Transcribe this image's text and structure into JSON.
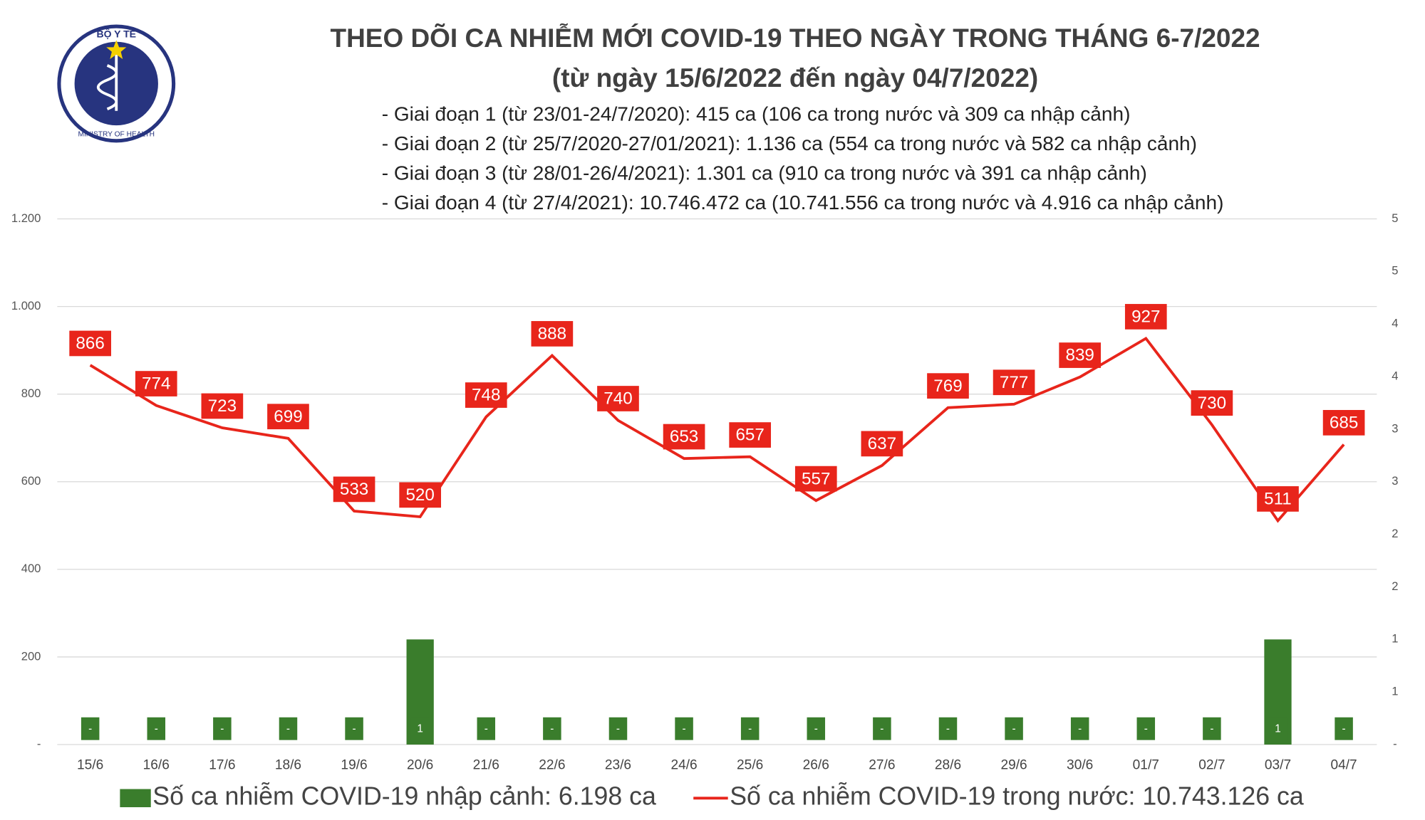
{
  "logo": {
    "top_text": "BỘ Y TẾ",
    "bottom_text": "MINISTRY OF HEALTH"
  },
  "chart_data": {
    "type": "bar-line",
    "title": "THEO DÕI CA NHIỄM MỚI COVID-19 THEO NGÀY TRONG THÁNG 6-7/2022",
    "subtitle": "(từ ngày 15/6/2022 đến ngày 04/7/2022)",
    "notes": [
      "- Giai đoạn 1 (từ 23/01-24/7/2020): 415 ca (106 ca trong nước và 309 ca nhập cảnh)",
      "- Giai đoạn 2 (từ 25/7/2020-27/01/2021): 1.136 ca (554 ca trong nước và 582 ca nhập cảnh)",
      "- Giai đoạn 3 (từ 28/01-26/4/2021): 1.301 ca (910 ca trong nước và 391 ca nhập cảnh)",
      "- Giai đoạn 4 (từ 27/4/2021): 10.746.472 ca (10.741.556 ca trong nước và 4.916 ca nhập cảnh)"
    ],
    "categories": [
      "15/6",
      "16/6",
      "17/6",
      "18/6",
      "19/6",
      "20/6",
      "21/6",
      "22/6",
      "23/6",
      "24/6",
      "25/6",
      "26/6",
      "27/6",
      "28/6",
      "29/6",
      "30/6",
      "01/7",
      "02/7",
      "03/7",
      "04/7"
    ],
    "series": [
      {
        "name": "Số ca nhiễm COVID-19 nhập cảnh: 6.198 ca",
        "type": "bar",
        "axis": "y2",
        "color": "#3a7d2c",
        "values": [
          0,
          0,
          0,
          0,
          0,
          1,
          0,
          0,
          0,
          0,
          0,
          0,
          0,
          0,
          0,
          0,
          0,
          0,
          1,
          0
        ],
        "value_labels": [
          "-",
          "-",
          "-",
          "-",
          "-",
          "1",
          "-",
          "-",
          "-",
          "-",
          "-",
          "-",
          "-",
          "-",
          "-",
          "-",
          "-",
          "-",
          "1",
          "-"
        ]
      },
      {
        "name": "Số ca nhiễm COVID-19 trong nước: 10.743.126 ca",
        "type": "line",
        "color": "#e8251b",
        "values": [
          866,
          774,
          723,
          699,
          533,
          520,
          748,
          888,
          740,
          653,
          657,
          557,
          637,
          769,
          777,
          839,
          927,
          730,
          511,
          685
        ]
      }
    ],
    "ylim": [
      0,
      1200
    ],
    "yticks": [
      {
        "value": 0,
        "label": "-"
      },
      200,
      400,
      600,
      800,
      {
        "value": 1000,
        "label": "1.000"
      },
      {
        "value": 1200,
        "label": "1.200"
      }
    ],
    "y2lim": [
      0,
      5
    ],
    "y2ticks": [
      {
        "value": 0,
        "label": "-"
      },
      {
        "value": 0.5,
        "label": "1"
      },
      1,
      {
        "value": 1.5,
        "label": "2"
      },
      2,
      {
        "value": 2.5,
        "label": "3"
      },
      3,
      {
        "value": 3.5,
        "label": "4"
      },
      4,
      {
        "value": 4.5,
        "label": "5"
      },
      5
    ],
    "grid": true
  }
}
